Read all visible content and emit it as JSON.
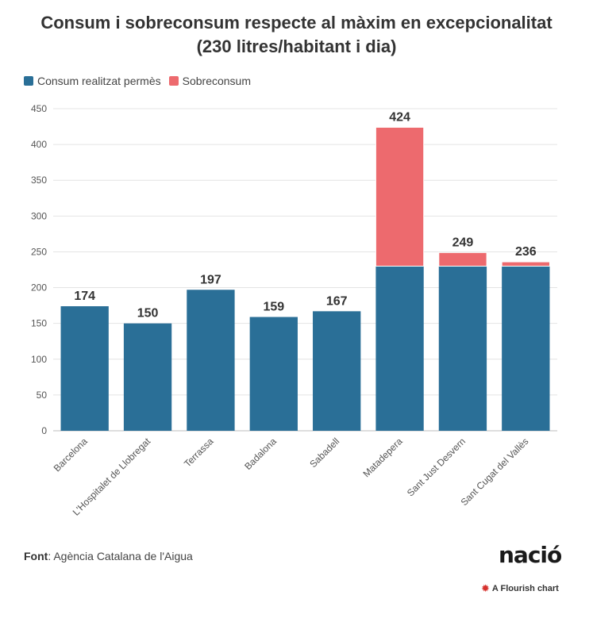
{
  "chart_data": {
    "type": "bar",
    "stacked": true,
    "title": "Consum i sobreconsum respecte al màxim en excepcionalitat",
    "subtitle": "(230 litres/habitant i dia)",
    "categories": [
      "Barcelona",
      "L'Hospitalet de Llobregat",
      "Terrassa",
      "Badalona",
      "Sabadell",
      "Matadepera",
      "Sant Just Desvern",
      "Sant Cugat del Vallès"
    ],
    "series": [
      {
        "name": "Consum realitzat permès",
        "color": "#2a6f97",
        "values": [
          174,
          150,
          197,
          159,
          167,
          230,
          230,
          230
        ]
      },
      {
        "name": "Sobreconsum",
        "color": "#ed6a6e",
        "values": [
          0,
          0,
          0,
          0,
          0,
          194,
          19,
          6
        ]
      }
    ],
    "totals": [
      "174",
      "150",
      "197",
      "159",
      "167",
      "424",
      "249",
      "236"
    ],
    "ylim": [
      0,
      450
    ],
    "yticks": [
      "0",
      "50",
      "100",
      "150",
      "200",
      "250",
      "300",
      "350",
      "400",
      "450"
    ],
    "xlabel": "",
    "ylabel": "",
    "legend_position": "top-left",
    "grid": true
  },
  "source": {
    "label": "Font",
    "text": ": Agència Catalana de l'Aigua"
  },
  "brand": {
    "logo_text": "nació",
    "credit": "A Flourish chart",
    "credit_icon": "flourish-icon"
  }
}
